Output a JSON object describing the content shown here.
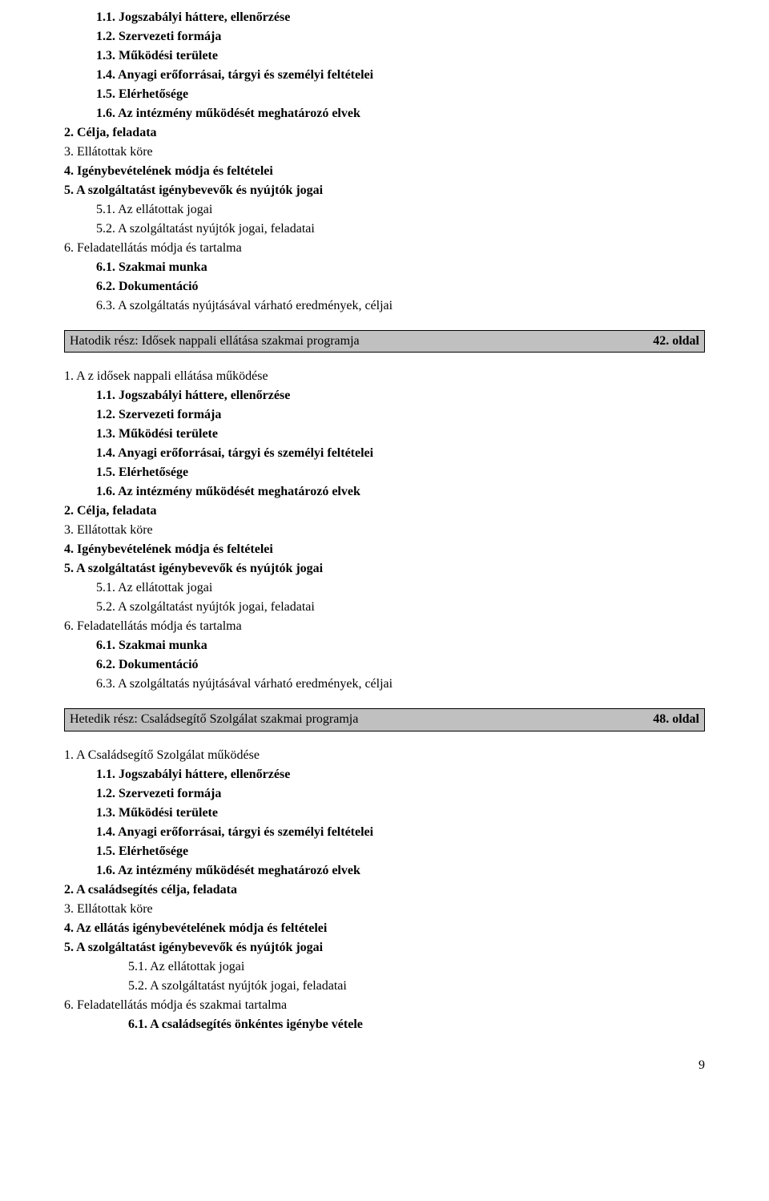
{
  "block_a": [
    {
      "text": "1.1. Jogszabályi háttere, ellenőrzése",
      "bold": true,
      "indent": "indent-1"
    },
    {
      "text": "1.2. Szervezeti formája",
      "bold": true,
      "indent": "indent-1"
    },
    {
      "text": "1.3. Működési területe",
      "bold": true,
      "indent": "indent-1"
    },
    {
      "text": "1.4. Anyagi erőforrásai, tárgyi és személyi feltételei",
      "bold": true,
      "indent": "indent-1"
    },
    {
      "text": "1.5. Elérhetősége",
      "bold": true,
      "indent": "indent-1"
    },
    {
      "text": "1.6. Az intézmény működését meghatározó elvek",
      "bold": true,
      "indent": "indent-1"
    },
    {
      "text": "2. Célja, feladata",
      "bold": true,
      "indent": "indent-none"
    },
    {
      "text": "3. Ellátottak köre",
      "bold": false,
      "indent": "indent-none"
    },
    {
      "text": "4. Igénybevételének módja és feltételei",
      "bold": true,
      "indent": "indent-none"
    },
    {
      "text": "5. A szolgáltatást igénybevevők és nyújtók jogai",
      "bold": true,
      "indent": "indent-none"
    },
    {
      "text": "5.1. Az ellátottak jogai",
      "bold": false,
      "indent": "indent-1"
    },
    {
      "text": "5.2. A szolgáltatást nyújtók jogai, feladatai",
      "bold": false,
      "indent": "indent-1"
    },
    {
      "text": " 6. Feladatellátás módja és tartalma",
      "bold": false,
      "indent": "indent-none"
    },
    {
      "text": "6.1. Szakmai munka",
      "bold": true,
      "indent": "indent-1"
    },
    {
      "text": "6.2. Dokumentáció",
      "bold": true,
      "indent": "indent-1"
    },
    {
      "text": "6.3. A szolgáltatás nyújtásával várható eredmények, céljai",
      "bold": false,
      "indent": "indent-1"
    }
  ],
  "section_6": {
    "title": "Hatodik rész: Idősek nappali ellátása szakmai programja",
    "page": "42. oldal"
  },
  "block_b": [
    {
      "text": "1. A z idősek nappali ellátása működése",
      "bold": false,
      "indent": "indent-none"
    },
    {
      "text": "1.1. Jogszabályi háttere, ellenőrzése",
      "bold": true,
      "indent": "indent-1"
    },
    {
      "text": "1.2. Szervezeti formája",
      "bold": true,
      "indent": "indent-1"
    },
    {
      "text": "1.3. Működési területe",
      "bold": true,
      "indent": "indent-1"
    },
    {
      "text": "1.4. Anyagi erőforrásai, tárgyi és személyi feltételei",
      "bold": true,
      "indent": "indent-1"
    },
    {
      "text": "1.5. Elérhetősége",
      "bold": true,
      "indent": "indent-1"
    },
    {
      "text": "1.6. Az intézmény működését meghatározó elvek",
      "bold": true,
      "indent": "indent-1"
    },
    {
      "text": "2. Célja, feladata",
      "bold": true,
      "indent": "indent-none"
    },
    {
      "text": "3. Ellátottak köre",
      "bold": false,
      "indent": "indent-none"
    },
    {
      "text": "4. Igénybevételének módja és feltételei",
      "bold": true,
      "indent": "indent-none"
    },
    {
      "text": "5. A szolgáltatást igénybevevők és nyújtók jogai",
      "bold": true,
      "indent": "indent-none"
    },
    {
      "text": "5.1. Az ellátottak jogai",
      "bold": false,
      "indent": "indent-1"
    },
    {
      "text": "5.2. A szolgáltatást nyújtók jogai, feladatai",
      "bold": false,
      "indent": "indent-1"
    },
    {
      "text": " 6. Feladatellátás módja és tartalma",
      "bold": false,
      "indent": "indent-none"
    },
    {
      "text": "6.1. Szakmai munka",
      "bold": true,
      "indent": "indent-1"
    },
    {
      "text": "6.2. Dokumentáció",
      "bold": true,
      "indent": "indent-1"
    },
    {
      "text": "6.3. A szolgáltatás nyújtásával várható eredmények, céljai",
      "bold": false,
      "indent": "indent-1"
    }
  ],
  "section_7": {
    "title": "Hetedik rész: Családsegítő Szolgálat szakmai programja",
    "page": "48. oldal"
  },
  "block_c": [
    {
      "text": "1. A Családsegítő Szolgálat működése",
      "bold": false,
      "indent": "indent-none"
    },
    {
      "text": "1.1. Jogszabályi háttere, ellenőrzése",
      "bold": true,
      "indent": "indent-1"
    },
    {
      "text": "1.2. Szervezeti formája",
      "bold": true,
      "indent": "indent-1"
    },
    {
      "text": "1.3. Működési területe",
      "bold": true,
      "indent": "indent-1"
    },
    {
      "text": "1.4. Anyagi erőforrásai, tárgyi és személyi feltételei",
      "bold": true,
      "indent": "indent-1"
    },
    {
      "text": "1.5. Elérhetősége",
      "bold": true,
      "indent": "indent-1"
    },
    {
      "text": "1.6. Az intézmény működését meghatározó elvek",
      "bold": true,
      "indent": "indent-1"
    },
    {
      "text": "2. A családsegítés célja, feladata",
      "bold": true,
      "indent": "indent-none"
    },
    {
      "text": "3. Ellátottak köre",
      "bold": false,
      "indent": "indent-none"
    },
    {
      "text": "4. Az ellátás igénybevételének módja és feltételei",
      "bold": true,
      "indent": "indent-none"
    },
    {
      "text": "5. A szolgáltatást igénybevevők és nyújtók jogai",
      "bold": true,
      "indent": "indent-none"
    },
    {
      "text": "5.1. Az ellátottak jogai",
      "bold": false,
      "indent": "indent-2"
    },
    {
      "text": "5.2. A szolgáltatást nyújtók jogai, feladatai",
      "bold": false,
      "indent": "indent-2"
    },
    {
      "text": "6. Feladatellátás módja és szakmai tartalma",
      "bold": false,
      "indent": "indent-none"
    },
    {
      "text": "6.1. A családsegítés önkéntes igénybe vétele",
      "bold": true,
      "indent": "indent-2"
    }
  ],
  "page_number": "9"
}
